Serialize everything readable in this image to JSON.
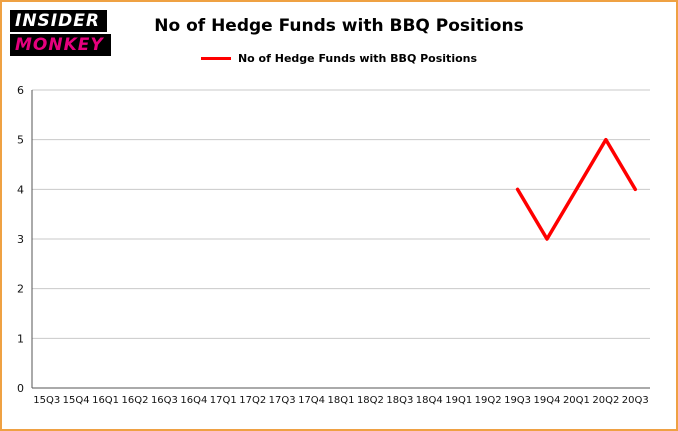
{
  "logo": {
    "line1": "INSIDER",
    "line2": "MONKEY"
  },
  "header": {
    "title": "No of Hedge Funds with BBQ Positions"
  },
  "legend": {
    "label": "No of Hedge Funds with BBQ Positions",
    "line_color": "#ff0000"
  },
  "colors": {
    "line": "#ff0000",
    "logo_pink": "#e6007e",
    "frame_border": "#efa143",
    "gridline": "#c9c9c9",
    "axis": "#555555"
  },
  "chart_data": {
    "type": "line",
    "title": "No of Hedge Funds with BBQ Positions",
    "xlabel": "",
    "ylabel": "",
    "categories": [
      "15Q3",
      "15Q4",
      "16Q1",
      "16Q2",
      "16Q3",
      "16Q4",
      "17Q1",
      "17Q2",
      "17Q3",
      "17Q4",
      "18Q1",
      "18Q2",
      "18Q3",
      "18Q4",
      "19Q1",
      "19Q2",
      "19Q3",
      "19Q4",
      "20Q1",
      "20Q2",
      "20Q3"
    ],
    "series": [
      {
        "name": "No of Hedge Funds with BBQ Positions",
        "color": "#ff0000",
        "values": [
          null,
          null,
          null,
          null,
          null,
          null,
          null,
          null,
          null,
          null,
          null,
          null,
          null,
          null,
          null,
          null,
          4,
          3,
          4,
          5,
          4
        ]
      }
    ],
    "ylim": [
      0,
      6
    ],
    "yticks": [
      0,
      1,
      2,
      3,
      4,
      5,
      6
    ],
    "grid": true,
    "legend_position": "top"
  }
}
